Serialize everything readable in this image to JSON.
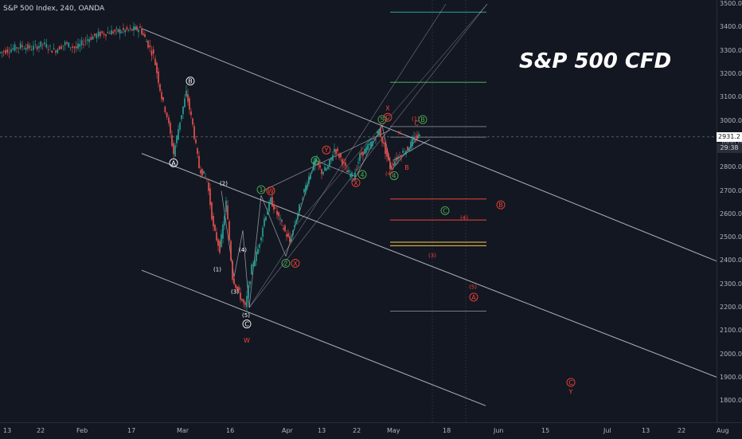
{
  "header": {
    "symbol_line": "S&P 500 Index, 240, OANDA"
  },
  "overlay_title": "S&P 500 CFD",
  "price_axis": {
    "last_price": "2931.2",
    "countdown": "29:38"
  },
  "colors": {
    "background": "#131722",
    "up_candle": "#26a69a",
    "down_candle": "#ef5350",
    "channel": "#d1d4dc",
    "green_label": "#4caf50",
    "red_label": "#f44336",
    "yellow_level": "#f7c948"
  },
  "chart_data": {
    "type": "candlestick",
    "title": "",
    "y_range": [
      1750,
      3500
    ],
    "y_ticks": [
      "3500.0",
      "3400.0",
      "3300.0",
      "3200.0",
      "3100.0",
      "3000.0",
      "2900.0",
      "2800.0",
      "2700.0",
      "2600.0",
      "2500.0",
      "2400.0",
      "2300.0",
      "2200.0",
      "2100.0",
      "2000.0",
      "1900.0",
      "1800.0"
    ],
    "x_ticks": [
      "13",
      "22",
      "Feb",
      "17",
      "Mar",
      "16",
      "Apr",
      "13",
      "22",
      "May",
      "18",
      "Jun",
      "15",
      "Jul",
      "13",
      "22",
      "Aug"
    ],
    "price_path": [
      [
        0,
        3290
      ],
      [
        14,
        3305
      ],
      [
        28,
        3320
      ],
      [
        42,
        3310
      ],
      [
        56,
        3330
      ],
      [
        70,
        3300
      ],
      [
        84,
        3330
      ],
      [
        98,
        3310
      ],
      [
        112,
        3350
      ],
      [
        126,
        3370
      ],
      [
        140,
        3380
      ],
      [
        155,
        3385
      ],
      [
        168,
        3390
      ],
      [
        178,
        3395
      ],
      [
        186,
        3340
      ],
      [
        195,
        3280
      ],
      [
        205,
        3100
      ],
      [
        212,
        3020
      ],
      [
        220,
        2860
      ],
      [
        228,
        3000
      ],
      [
        236,
        3120
      ],
      [
        244,
        2980
      ],
      [
        252,
        2800
      ],
      [
        262,
        2750
      ],
      [
        270,
        2540
      ],
      [
        278,
        2450
      ],
      [
        286,
        2650
      ],
      [
        294,
        2330
      ],
      [
        302,
        2260
      ],
      [
        310,
        2200
      ],
      [
        318,
        2370
      ],
      [
        326,
        2450
      ],
      [
        334,
        2580
      ],
      [
        342,
        2660
      ],
      [
        350,
        2600
      ],
      [
        358,
        2540
      ],
      [
        366,
        2480
      ],
      [
        374,
        2580
      ],
      [
        382,
        2680
      ],
      [
        390,
        2760
      ],
      [
        398,
        2830
      ],
      [
        406,
        2780
      ],
      [
        414,
        2800
      ],
      [
        422,
        2880
      ],
      [
        430,
        2840
      ],
      [
        438,
        2780
      ],
      [
        446,
        2760
      ],
      [
        454,
        2850
      ],
      [
        462,
        2880
      ],
      [
        470,
        2910
      ],
      [
        478,
        2960
      ],
      [
        486,
        2870
      ],
      [
        492,
        2800
      ],
      [
        498,
        2830
      ],
      [
        506,
        2860
      ],
      [
        514,
        2880
      ],
      [
        522,
        2920
      ],
      [
        528,
        2935
      ]
    ],
    "horizontal_levels": [
      {
        "price": 3465,
        "color": "#26a69a"
      },
      {
        "price": 3165,
        "color": "#4caf50"
      },
      {
        "price": 2975,
        "color": "#787b86"
      },
      {
        "price": 2930,
        "color": "#787b86"
      },
      {
        "price": 2665,
        "color": "#f44336"
      },
      {
        "price": 2575,
        "color": "#f44336"
      },
      {
        "price": 2480,
        "color": "#f7c948"
      },
      {
        "price": 2465,
        "color": "#f7c948"
      },
      {
        "price": 2185,
        "color": "#787b86"
      }
    ],
    "annotations": [
      {
        "text": "A",
        "style": "circle-white",
        "price": 2820,
        "x": 218
      },
      {
        "text": "B",
        "style": "circle-white",
        "price": 3170,
        "x": 239
      },
      {
        "text": "(1)",
        "style": "plain-white",
        "price": 2365,
        "x": 273
      },
      {
        "text": "(2)",
        "style": "plain-white",
        "price": 2735,
        "x": 281
      },
      {
        "text": "(3)",
        "style": "plain-white",
        "price": 2270,
        "x": 295
      },
      {
        "text": "(4)",
        "style": "plain-white",
        "price": 2450,
        "x": 305
      },
      {
        "text": "(5)",
        "style": "plain-white",
        "price": 2170,
        "x": 309
      },
      {
        "text": "C",
        "style": "circle-white",
        "price": 2130,
        "x": 310
      },
      {
        "text": "W",
        "style": "plain-red",
        "price": 2060,
        "x": 310
      },
      {
        "text": "1",
        "style": "circle-green",
        "price": 2705,
        "x": 328
      },
      {
        "text": "W",
        "style": "circle-red",
        "price": 2700,
        "x": 340
      },
      {
        "text": "2",
        "style": "circle-green",
        "price": 2390,
        "x": 359
      },
      {
        "text": "X",
        "style": "circle-red",
        "price": 2390,
        "x": 371
      },
      {
        "text": "3",
        "style": "circle-green",
        "price": 2830,
        "x": 396
      },
      {
        "text": "Y",
        "style": "circle-red",
        "price": 2875,
        "x": 410
      },
      {
        "text": "4",
        "style": "circle-green",
        "price": 2770,
        "x": 455
      },
      {
        "text": "X",
        "style": "circle-red",
        "price": 2735,
        "x": 447
      },
      {
        "text": "5",
        "style": "circle-green",
        "price": 3005,
        "x": 480
      },
      {
        "text": "X",
        "style": "plain-red",
        "price": 3055,
        "x": 487
      },
      {
        "text": "C",
        "style": "circle-red",
        "price": 3015,
        "x": 487
      },
      {
        "text": "4",
        "style": "circle-green",
        "price": 2765,
        "x": 495
      },
      {
        "text": "(4)",
        "style": "plain-red",
        "price": 2775,
        "x": 489
      },
      {
        "text": "B",
        "style": "plain-red",
        "price": 2800,
        "x": 511
      },
      {
        "text": "x",
        "style": "plain-red",
        "price": 2950,
        "x": 502
      },
      {
        "text": "(1)",
        "style": "plain-red",
        "price": 3010,
        "x": 522
      },
      {
        "text": "C",
        "style": "plain-red",
        "price": 2990,
        "x": 523
      },
      {
        "text": "B",
        "style": "circle-green",
        "price": 3005,
        "x": 531
      },
      {
        "text": "C",
        "style": "circle-green",
        "price": 2615,
        "x": 559
      },
      {
        "text": "(4)",
        "style": "plain-red",
        "price": 2588,
        "x": 583
      },
      {
        "text": "B",
        "style": "circle-red",
        "price": 2640,
        "x": 629
      },
      {
        "text": "(3)",
        "style": "plain-red",
        "price": 2425,
        "x": 543
      },
      {
        "text": "(5)",
        "style": "plain-red",
        "price": 2290,
        "x": 594
      },
      {
        "text": "A",
        "style": "circle-red",
        "price": 2245,
        "x": 595
      },
      {
        "text": "C",
        "style": "circle-red",
        "price": 1880,
        "x": 717
      },
      {
        "text": "Y",
        "style": "plain-red",
        "price": 1840,
        "x": 717
      }
    ]
  }
}
